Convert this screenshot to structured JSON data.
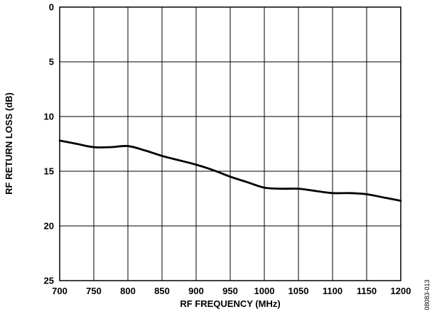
{
  "chart_data": {
    "type": "line",
    "xlabel": "RF FREQUENCY (MHz)",
    "ylabel": "RF RETURN LOSS (dB)",
    "xlim": [
      700,
      1200
    ],
    "ylim": [
      0,
      25
    ],
    "y_axis_inverted": true,
    "grid": true,
    "x_ticks": [
      700,
      750,
      800,
      850,
      900,
      950,
      1000,
      1050,
      1100,
      1150,
      1200
    ],
    "y_ticks": [
      0,
      5,
      10,
      15,
      20,
      25
    ],
    "series": [
      {
        "x": [
          700,
          725,
          750,
          775,
          800,
          825,
          850,
          875,
          900,
          925,
          950,
          975,
          1000,
          1025,
          1050,
          1075,
          1100,
          1125,
          1150,
          1175,
          1200
        ],
        "values": [
          12.2,
          12.5,
          12.8,
          12.8,
          12.7,
          13.1,
          13.6,
          14.0,
          14.4,
          14.9,
          15.5,
          16.0,
          16.5,
          16.6,
          16.6,
          16.8,
          17.0,
          17.0,
          17.1,
          17.4,
          17.7
        ],
        "color": "#000000"
      }
    ],
    "figure_id": "08083-013"
  }
}
